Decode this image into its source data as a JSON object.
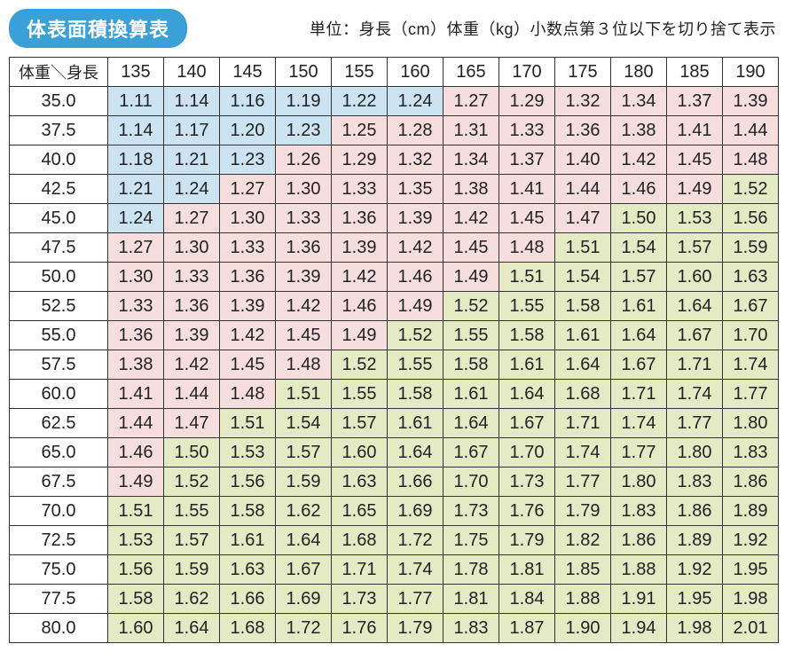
{
  "title": "体表面積換算表",
  "units_label": "単位：身長（cm）体重（kg）小数点第３位以下を切り捨て表示",
  "corner_label": "体重＼身長",
  "colors": {
    "blue": "#cce3f2",
    "pink": "#f7dede",
    "green": "#e4ebc4",
    "badge_bg": "#3aa0d8",
    "border": "#333333"
  },
  "font_sizes": {
    "title": 22,
    "units": 18,
    "cell": 20
  },
  "thresholds": {
    "blue_max": 1.24,
    "pink_max": 1.49
  },
  "height_columns": [
    "135",
    "140",
    "145",
    "150",
    "155",
    "160",
    "165",
    "170",
    "175",
    "180",
    "185",
    "190"
  ],
  "weight_rows": [
    "35.0",
    "37.5",
    "40.0",
    "42.5",
    "45.0",
    "47.5",
    "50.0",
    "52.5",
    "55.0",
    "57.5",
    "60.0",
    "62.5",
    "65.0",
    "67.5",
    "70.0",
    "72.5",
    "75.0",
    "77.5",
    "80.0"
  ],
  "values": [
    [
      "1.11",
      "1.14",
      "1.16",
      "1.19",
      "1.22",
      "1.24",
      "1.27",
      "1.29",
      "1.32",
      "1.34",
      "1.37",
      "1.39"
    ],
    [
      "1.14",
      "1.17",
      "1.20",
      "1.23",
      "1.25",
      "1.28",
      "1.31",
      "1.33",
      "1.36",
      "1.38",
      "1.41",
      "1.44"
    ],
    [
      "1.18",
      "1.21",
      "1.23",
      "1.26",
      "1.29",
      "1.32",
      "1.34",
      "1.37",
      "1.40",
      "1.42",
      "1.45",
      "1.48"
    ],
    [
      "1.21",
      "1.24",
      "1.27",
      "1.30",
      "1.33",
      "1.35",
      "1.38",
      "1.41",
      "1.44",
      "1.46",
      "1.49",
      "1.52"
    ],
    [
      "1.24",
      "1.27",
      "1.30",
      "1.33",
      "1.36",
      "1.39",
      "1.42",
      "1.45",
      "1.47",
      "1.50",
      "1.53",
      "1.56"
    ],
    [
      "1.27",
      "1.30",
      "1.33",
      "1.36",
      "1.39",
      "1.42",
      "1.45",
      "1.48",
      "1.51",
      "1.54",
      "1.57",
      "1.59"
    ],
    [
      "1.30",
      "1.33",
      "1.36",
      "1.39",
      "1.42",
      "1.46",
      "1.49",
      "1.51",
      "1.54",
      "1.57",
      "1.60",
      "1.63"
    ],
    [
      "1.33",
      "1.36",
      "1.39",
      "1.42",
      "1.46",
      "1.49",
      "1.52",
      "1.55",
      "1.58",
      "1.61",
      "1.64",
      "1.67"
    ],
    [
      "1.36",
      "1.39",
      "1.42",
      "1.45",
      "1.49",
      "1.52",
      "1.55",
      "1.58",
      "1.61",
      "1.64",
      "1.67",
      "1.70"
    ],
    [
      "1.38",
      "1.42",
      "1.45",
      "1.48",
      "1.52",
      "1.55",
      "1.58",
      "1.61",
      "1.64",
      "1.67",
      "1.71",
      "1.74"
    ],
    [
      "1.41",
      "1.44",
      "1.48",
      "1.51",
      "1.55",
      "1.58",
      "1.61",
      "1.64",
      "1.68",
      "1.71",
      "1.74",
      "1.77"
    ],
    [
      "1.44",
      "1.47",
      "1.51",
      "1.54",
      "1.57",
      "1.61",
      "1.64",
      "1.67",
      "1.71",
      "1.74",
      "1.77",
      "1.80"
    ],
    [
      "1.46",
      "1.50",
      "1.53",
      "1.57",
      "1.60",
      "1.64",
      "1.67",
      "1.70",
      "1.74",
      "1.77",
      "1.80",
      "1.83"
    ],
    [
      "1.49",
      "1.52",
      "1.56",
      "1.59",
      "1.63",
      "1.66",
      "1.70",
      "1.73",
      "1.77",
      "1.80",
      "1.83",
      "1.86"
    ],
    [
      "1.51",
      "1.55",
      "1.58",
      "1.62",
      "1.65",
      "1.69",
      "1.73",
      "1.76",
      "1.79",
      "1.83",
      "1.86",
      "1.89"
    ],
    [
      "1.53",
      "1.57",
      "1.61",
      "1.64",
      "1.68",
      "1.72",
      "1.75",
      "1.79",
      "1.82",
      "1.86",
      "1.89",
      "1.92"
    ],
    [
      "1.56",
      "1.59",
      "1.63",
      "1.67",
      "1.71",
      "1.74",
      "1.78",
      "1.81",
      "1.85",
      "1.88",
      "1.92",
      "1.95"
    ],
    [
      "1.58",
      "1.62",
      "1.66",
      "1.69",
      "1.73",
      "1.77",
      "1.81",
      "1.84",
      "1.88",
      "1.91",
      "1.95",
      "1.98"
    ],
    [
      "1.60",
      "1.64",
      "1.68",
      "1.72",
      "1.76",
      "1.79",
      "1.83",
      "1.87",
      "1.90",
      "1.94",
      "1.98",
      "2.01"
    ]
  ]
}
